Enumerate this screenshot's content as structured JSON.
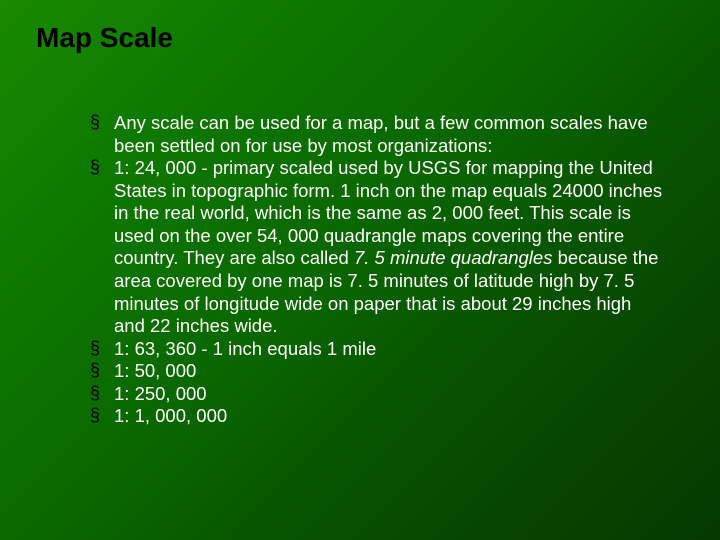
{
  "slide": {
    "title": "Map Scale",
    "title_color": "#000000",
    "title_fontsize": 28,
    "body_fontsize": 18.5,
    "body_color": "#ffffff",
    "bullet_color": "#000000",
    "bullet_glyph": "§",
    "background_gradient": [
      "#1a8a00",
      "#0e7a00",
      "#0a6800",
      "#074e00",
      "#053800"
    ],
    "bullets": [
      {
        "text": "Any scale can be used for a map, but a few common scales have been settled on for use by most organizations:"
      },
      {
        "pre": "1: 24, 000 - primary scaled used by USGS for mapping the United States in topographic form. 1 inch on the map equals 24000 inches in the real world, which is the same as 2, 000 feet. This scale is used on the over 54, 000 quadrangle maps covering the entire country. They are also called ",
        "italic": "7. 5 minute quadrangles",
        "post": " because the area covered by one map is 7. 5 minutes of latitude high by 7. 5 minutes of longitude wide on paper that is about 29 inches high and 22 inches wide."
      },
      {
        "text": "1: 63, 360 - 1 inch equals 1 mile"
      },
      {
        "text": "1: 50, 000"
      },
      {
        "text": "1: 250, 000"
      },
      {
        "text": "1: 1, 000, 000"
      }
    ]
  }
}
